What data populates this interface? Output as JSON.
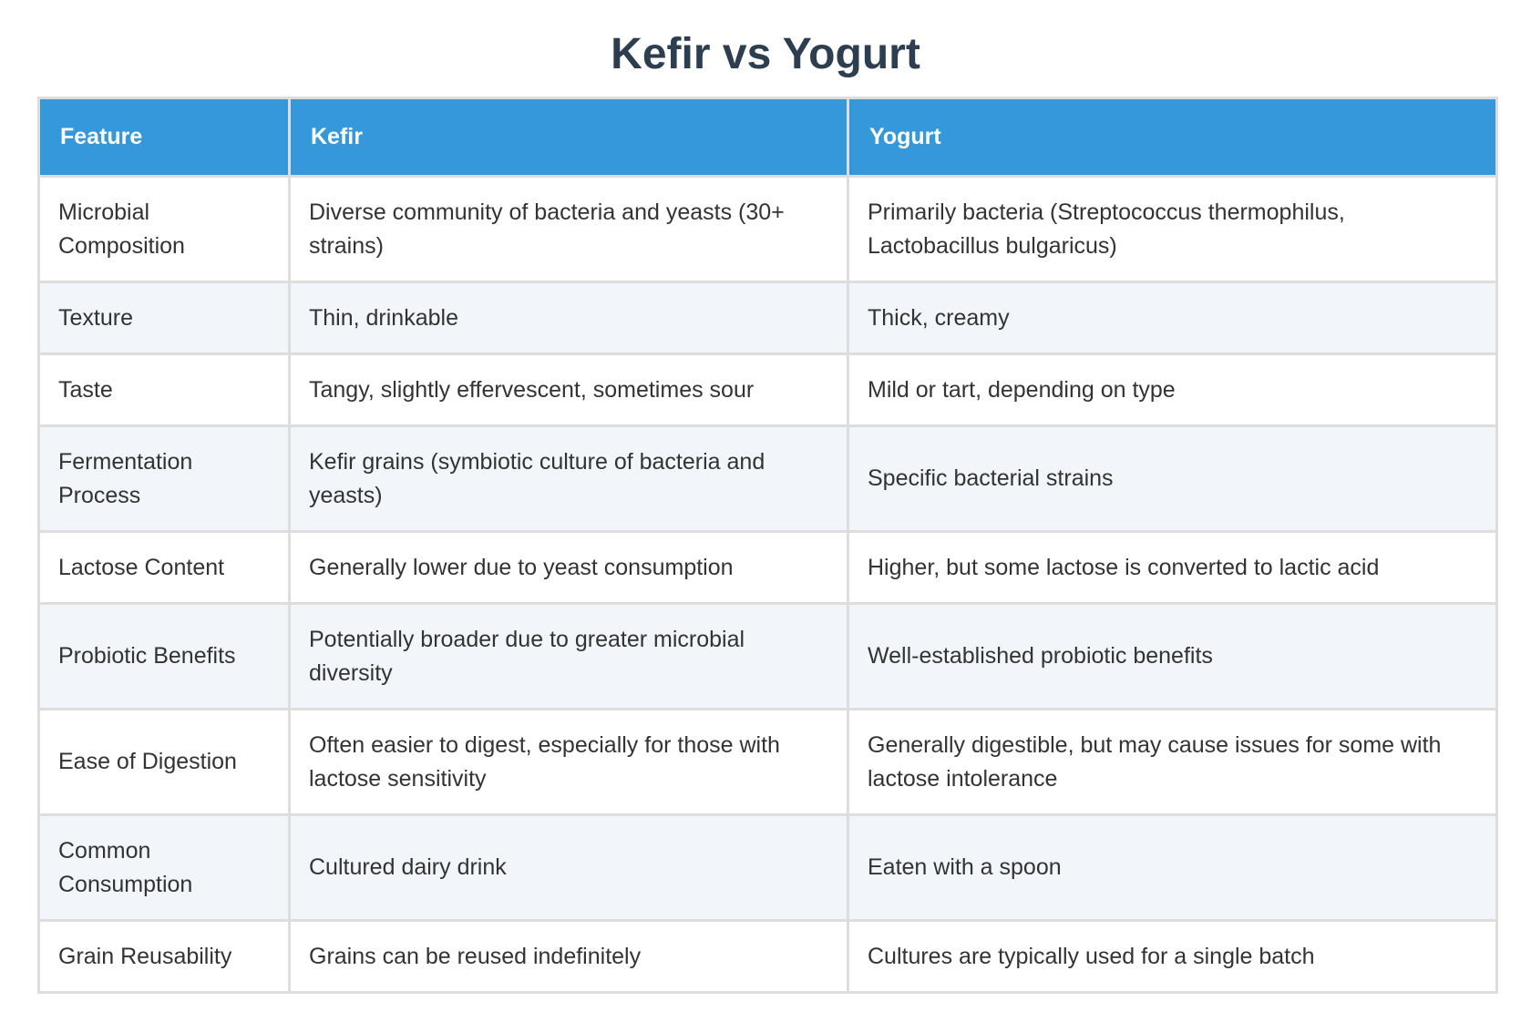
{
  "title": "Kefir vs Yogurt",
  "table": {
    "headers": [
      "Feature",
      "Kefir",
      "Yogurt"
    ],
    "rows": [
      [
        "Microbial Composition",
        "Diverse community of bacteria and yeasts (30+ strains)",
        "Primarily bacteria (Streptococcus thermophilus, Lactobacillus bulgaricus)"
      ],
      [
        "Texture",
        "Thin, drinkable",
        "Thick, creamy"
      ],
      [
        "Taste",
        "Tangy, slightly effervescent, sometimes sour",
        "Mild or tart, depending on type"
      ],
      [
        "Fermentation Process",
        "Kefir grains (symbiotic culture of bacteria and yeasts)",
        "Specific bacterial strains"
      ],
      [
        "Lactose Content",
        "Generally lower due to yeast consumption",
        "Higher, but some lactose is converted to lactic acid"
      ],
      [
        "Probiotic Benefits",
        "Potentially broader due to greater microbial diversity",
        "Well-established probiotic benefits"
      ],
      [
        "Ease of Digestion",
        "Often easier to digest, especially for those with lactose sensitivity",
        "Generally digestible, but may cause issues for some with lactose intolerance"
      ],
      [
        "Common Consumption",
        "Cultured dairy drink",
        "Eaten with a spoon"
      ],
      [
        "Grain Reusability",
        "Grains can be reused indefinitely",
        "Cultures are typically used for a single batch"
      ]
    ]
  }
}
